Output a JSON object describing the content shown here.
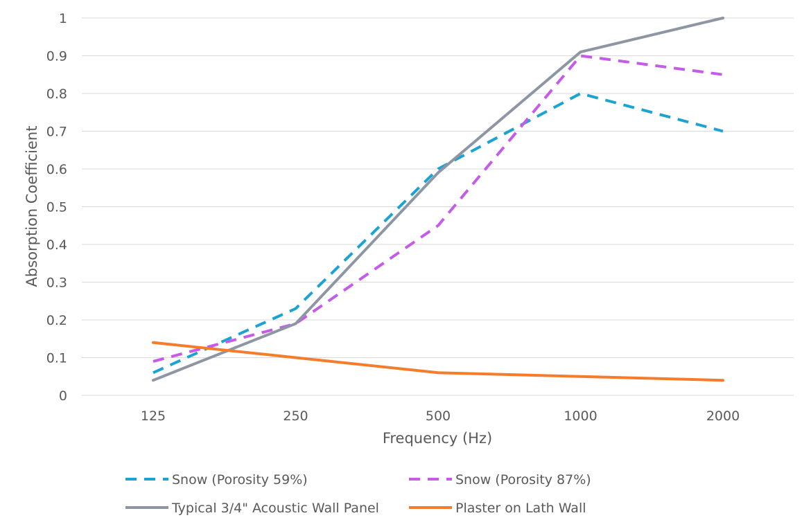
{
  "chart_data": {
    "type": "line",
    "title": "",
    "xlabel": "Frequency (Hz)",
    "ylabel": "Absorption Coefficient",
    "categories": [
      "125",
      "250",
      "500",
      "1000",
      "2000"
    ],
    "ylim": [
      0,
      1
    ],
    "yticks": [
      "0",
      "0.1",
      "0.2",
      "0.3",
      "0.4",
      "0.5",
      "0.6",
      "0.7",
      "0.8",
      "0.9",
      "1"
    ],
    "grid": true,
    "legend_position": "bottom",
    "series": [
      {
        "name": "Snow (Porosity 59%)",
        "values": [
          0.06,
          0.23,
          0.6,
          0.8,
          0.7
        ],
        "color": "#1aa3d3",
        "style": "dashed"
      },
      {
        "name": "Snow (Porosity 87%)",
        "values": [
          0.09,
          0.19,
          0.45,
          0.9,
          0.85
        ],
        "color": "#c55be8",
        "style": "dashed"
      },
      {
        "name": "Typical 3/4\" Acoustic Wall Panel",
        "values": [
          0.04,
          0.19,
          0.59,
          0.91,
          1.0
        ],
        "color": "#8f96a3",
        "style": "solid"
      },
      {
        "name": "Plaster on Lath Wall",
        "values": [
          0.14,
          0.1,
          0.06,
          0.05,
          0.04
        ],
        "color": "#f57c2b",
        "style": "solid"
      }
    ]
  }
}
